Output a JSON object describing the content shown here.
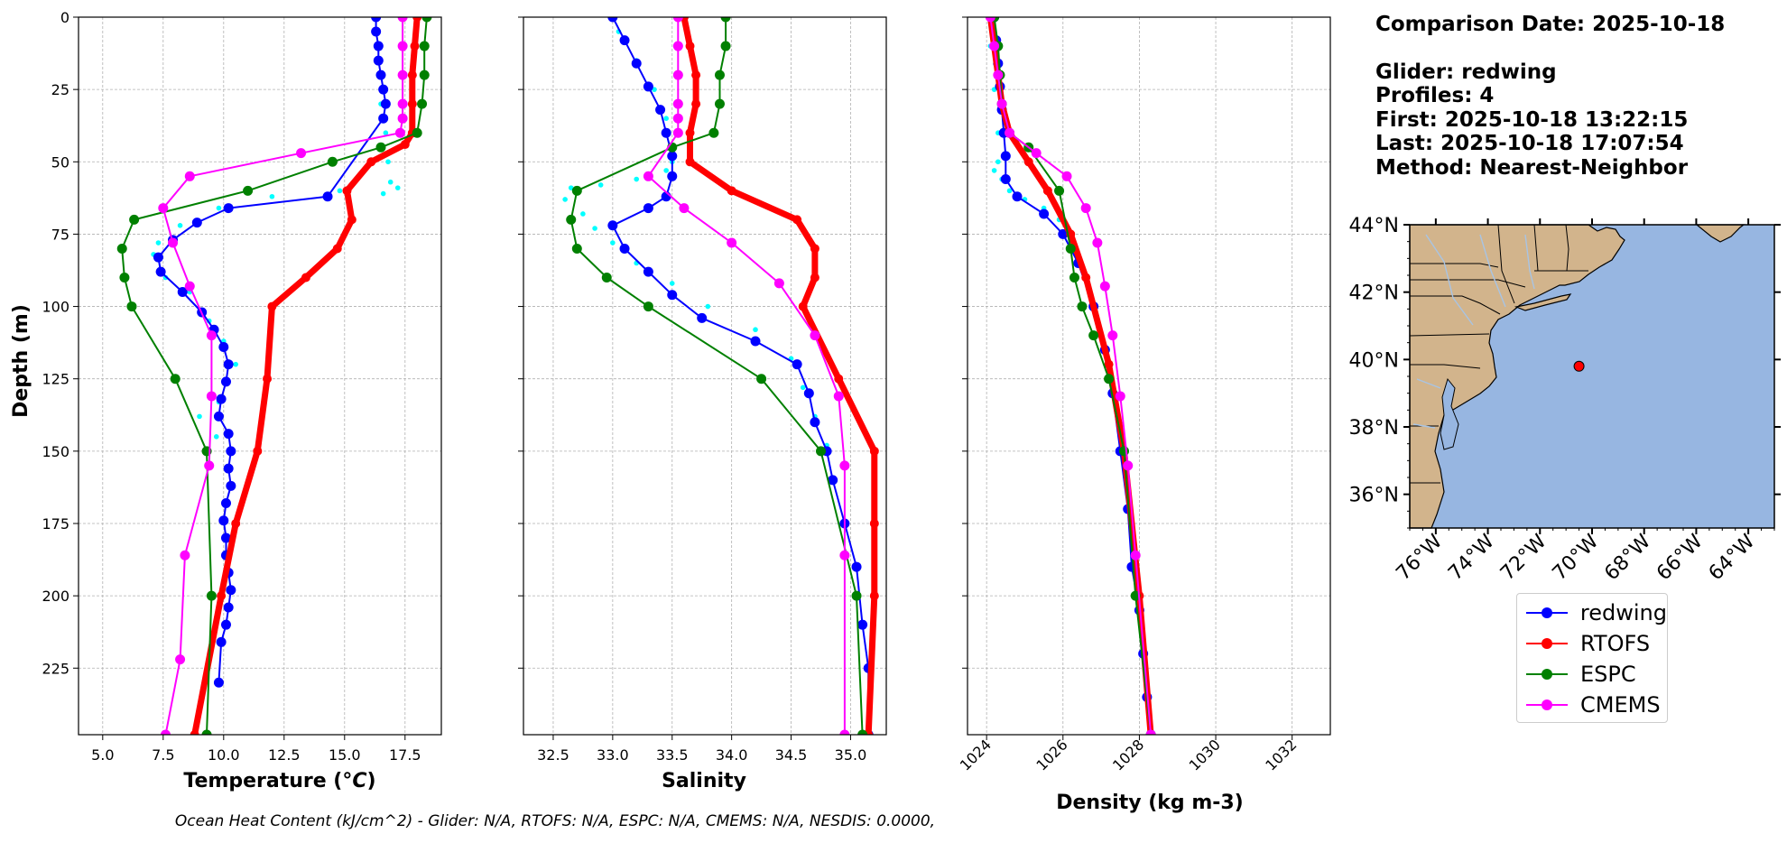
{
  "info": {
    "comparison_date": "Comparison Date: 2025-10-18",
    "glider": "Glider: redwing",
    "profiles": "Profiles: 4",
    "first": "First: 2025-10-18 13:22:15",
    "last": "Last: 2025-10-18 17:07:54",
    "method": "Method: Nearest-Neighbor"
  },
  "footer": "Ocean Heat Content (kJ/cm^2) - Glider: N/A,  RTOFS: N/A,  ESPC: N/A,  CMEMS: N/A,  NESDIS: 0.0000,",
  "legend": [
    {
      "label": "redwing",
      "color": "#0000ff"
    },
    {
      "label": "RTOFS",
      "color": "#ff0000"
    },
    {
      "label": "ESPC",
      "color": "#008000"
    },
    {
      "label": "CMEMS",
      "color": "#ff00ff"
    }
  ],
  "map": {
    "lat_ticks": [
      "44°N",
      "42°N",
      "40°N",
      "38°N",
      "36°N"
    ],
    "lon_ticks": [
      "76°W",
      "74°W",
      "72°W",
      "70°W",
      "68°W",
      "66°W",
      "64°W"
    ],
    "lat_range": [
      35,
      44
    ],
    "lon_range": [
      -77,
      -63
    ],
    "glider_position": [
      -70.5,
      39.8
    ],
    "ocean_color": "#97b6e1",
    "land_color": "#d2b48c",
    "marker_color": "#ff0000"
  },
  "chart_data": [
    {
      "type": "line",
      "panel": "temperature",
      "xlabel": "Temperature (°C)",
      "ylabel": "Depth (m)",
      "xlim": [
        4,
        19
      ],
      "ylim": [
        248,
        0
      ],
      "xticks": [
        5.0,
        7.5,
        10.0,
        12.5,
        15.0,
        17.5
      ],
      "xticklabels": [
        "5.0",
        "7.5",
        "10.0",
        "12.5",
        "15.0",
        "17.5"
      ],
      "yticks": [
        0,
        25,
        50,
        75,
        100,
        125,
        150,
        175,
        200,
        225
      ],
      "yticklabels": [
        "0",
        "25",
        "50",
        "75",
        "100",
        "125",
        "150",
        "175",
        "200",
        "225"
      ],
      "grid": true,
      "scatter": {
        "name": "redwing profiles",
        "color": "#00ffff",
        "x": [
          16.3,
          16.4,
          16.5,
          16.7,
          16.8,
          16.9,
          17.2,
          16.6,
          14.8,
          12.0,
          9.8,
          8.2,
          7.3,
          7.1,
          7.6,
          8.6,
          9.4,
          10.0,
          10.5,
          10.1,
          9.8,
          9.0,
          9.7,
          10.2
        ],
        "y": [
          10,
          20,
          30,
          40,
          50,
          57,
          59,
          61,
          60,
          62,
          66,
          72,
          78,
          82,
          90,
          95,
          105,
          112,
          120,
          126,
          133,
          138,
          145,
          150
        ]
      },
      "series": [
        {
          "name": "redwing",
          "color": "#0000ff",
          "x": [
            16.3,
            16.3,
            16.4,
            16.4,
            16.5,
            16.6,
            16.7,
            16.6,
            14.3,
            10.2,
            8.9,
            7.9,
            7.3,
            7.4,
            8.3,
            9.1,
            9.6,
            10.0,
            10.2,
            10.1,
            9.9,
            9.8,
            10.2,
            10.3,
            10.2,
            10.3,
            10.1,
            10.0,
            10.1,
            10.1,
            10.2,
            10.3,
            10.2,
            10.1,
            9.9,
            9.8
          ],
          "y": [
            0,
            5,
            10,
            15,
            20,
            25,
            30,
            35,
            62,
            66,
            71,
            77,
            83,
            88,
            95,
            102,
            108,
            114,
            120,
            126,
            132,
            138,
            144,
            150,
            156,
            162,
            168,
            174,
            180,
            186,
            192,
            198,
            204,
            210,
            216,
            230
          ]
        },
        {
          "name": "RTOFS",
          "color": "#ff0000",
          "x": [
            18.0,
            17.9,
            17.8,
            17.8,
            17.8,
            17.5,
            16.1,
            15.1,
            15.3,
            14.7,
            13.4,
            12.0,
            11.8,
            11.4,
            10.5,
            9.9,
            8.8
          ],
          "y": [
            0,
            10,
            20,
            30,
            40,
            44,
            50,
            60,
            70,
            80,
            90,
            100,
            125,
            150,
            175,
            200,
            248
          ]
        },
        {
          "name": "ESPC",
          "color": "#008000",
          "x": [
            18.4,
            18.3,
            18.3,
            18.2,
            18.0,
            16.5,
            14.5,
            11.0,
            6.3,
            5.8,
            5.9,
            6.2,
            8.0,
            9.3,
            9.5,
            9.3
          ],
          "y": [
            0,
            10,
            20,
            30,
            40,
            45,
            50,
            60,
            70,
            80,
            90,
            100,
            125,
            150,
            200,
            248
          ]
        },
        {
          "name": "CMEMS",
          "color": "#ff00ff",
          "x": [
            17.4,
            17.4,
            17.4,
            17.4,
            17.4,
            17.3,
            13.2,
            8.6,
            7.5,
            7.9,
            8.6,
            9.5,
            9.5,
            9.4,
            8.4,
            8.2,
            7.6
          ],
          "y": [
            0,
            10,
            20,
            30,
            35,
            40,
            47,
            55,
            66,
            78,
            93,
            110,
            131,
            155,
            186,
            222,
            248
          ]
        }
      ]
    },
    {
      "type": "line",
      "panel": "salinity",
      "xlabel": "Salinity",
      "ylabel": "",
      "xlim": [
        32.25,
        35.3
      ],
      "ylim": [
        248,
        0
      ],
      "xticks": [
        32.5,
        33.0,
        33.5,
        34.0,
        34.5,
        35.0
      ],
      "xticklabels": [
        "32.5",
        "33.0",
        "33.5",
        "34.0",
        "34.5",
        "35.0"
      ],
      "yticks": [
        0,
        25,
        50,
        75,
        100,
        125,
        150,
        175,
        200,
        225
      ],
      "grid": true,
      "scatter": {
        "name": "redwing profiles",
        "color": "#00ffff",
        "x": [
          33.05,
          33.2,
          33.35,
          33.45,
          33.5,
          33.5,
          33.45,
          33.2,
          32.9,
          32.65,
          32.6,
          32.75,
          32.85,
          33.0,
          33.2,
          33.5,
          33.8,
          34.2,
          34.5,
          34.6,
          34.7,
          34.8
        ],
        "y": [
          5,
          15,
          25,
          35,
          45,
          50,
          53,
          56,
          58,
          59,
          63,
          68,
          73,
          78,
          85,
          92,
          100,
          108,
          118,
          128,
          138,
          148
        ]
      },
      "series": [
        {
          "name": "redwing",
          "color": "#0000ff",
          "x": [
            33.0,
            33.1,
            33.2,
            33.3,
            33.4,
            33.45,
            33.5,
            33.5,
            33.45,
            33.3,
            33.0,
            33.1,
            33.3,
            33.5,
            33.75,
            34.2,
            34.55,
            34.65,
            34.7,
            34.8,
            34.85,
            34.95,
            35.05,
            35.1,
            35.15,
            35.15
          ],
          "y": [
            0,
            8,
            16,
            24,
            32,
            40,
            48,
            55,
            62,
            66,
            72,
            80,
            88,
            96,
            104,
            112,
            120,
            130,
            140,
            150,
            160,
            175,
            190,
            210,
            225,
            248
          ]
        },
        {
          "name": "RTOFS",
          "color": "#ff0000",
          "x": [
            33.6,
            33.65,
            33.7,
            33.7,
            33.65,
            33.65,
            34.0,
            34.55,
            34.7,
            34.7,
            34.6,
            34.9,
            35.2,
            35.2,
            35.2,
            35.15
          ],
          "y": [
            0,
            10,
            20,
            30,
            40,
            50,
            60,
            70,
            80,
            90,
            100,
            125,
            150,
            175,
            200,
            248
          ]
        },
        {
          "name": "ESPC",
          "color": "#008000",
          "x": [
            33.95,
            33.95,
            33.9,
            33.9,
            33.85,
            33.5,
            32.7,
            32.65,
            32.7,
            32.95,
            33.3,
            34.25,
            34.75,
            35.05,
            35.1
          ],
          "y": [
            0,
            10,
            20,
            30,
            40,
            45,
            60,
            70,
            80,
            90,
            100,
            125,
            150,
            200,
            248
          ]
        },
        {
          "name": "CMEMS",
          "color": "#ff00ff",
          "x": [
            33.55,
            33.55,
            33.55,
            33.55,
            33.55,
            33.55,
            33.3,
            33.6,
            34.0,
            34.4,
            34.7,
            34.9,
            34.95,
            34.95,
            34.95
          ],
          "y": [
            0,
            10,
            20,
            30,
            35,
            40,
            55,
            66,
            78,
            92,
            110,
            131,
            155,
            186,
            248
          ]
        }
      ]
    },
    {
      "type": "line",
      "panel": "density",
      "xlabel": "Density (kg m-3)",
      "ylabel": "",
      "xlim": [
        1023.5,
        1033
      ],
      "ylim": [
        248,
        0
      ],
      "xticks": [
        1024,
        1026,
        1028,
        1030,
        1032
      ],
      "xticklabels": [
        "1024",
        "1026",
        "1028",
        "1030",
        "1032"
      ],
      "yticks": [
        0,
        25,
        50,
        75,
        100,
        125,
        150,
        175,
        200,
        225
      ],
      "grid": true,
      "scatter": {
        "name": "redwing profiles",
        "color": "#00ffff",
        "x": [
          1024.1,
          1024.2,
          1024.3,
          1024.3,
          1024.2,
          1024.4,
          1024.6,
          1025.0,
          1025.5,
          1025.9
        ],
        "y": [
          10,
          25,
          40,
          50,
          53,
          56,
          60,
          63,
          66,
          70
        ]
      },
      "series": [
        {
          "name": "redwing",
          "color": "#0000ff",
          "x": [
            1024.2,
            1024.25,
            1024.3,
            1024.35,
            1024.4,
            1024.45,
            1024.5,
            1024.5,
            1024.8,
            1025.5,
            1026.0,
            1026.4,
            1026.8,
            1027.1,
            1027.3,
            1027.5,
            1027.7,
            1027.8,
            1028.0,
            1028.1,
            1028.2,
            1028.3
          ],
          "y": [
            0,
            8,
            16,
            24,
            32,
            40,
            48,
            56,
            62,
            68,
            75,
            85,
            100,
            115,
            130,
            150,
            170,
            190,
            205,
            220,
            235,
            248
          ]
        },
        {
          "name": "RTOFS",
          "color": "#ff0000",
          "x": [
            1024.1,
            1024.2,
            1024.3,
            1024.4,
            1024.6,
            1025.1,
            1025.6,
            1026.2,
            1026.6,
            1027.2,
            1027.6,
            1028.0,
            1028.3
          ],
          "y": [
            0,
            10,
            20,
            30,
            40,
            50,
            60,
            75,
            90,
            120,
            150,
            200,
            248
          ]
        },
        {
          "name": "ESPC",
          "color": "#008000",
          "x": [
            1024.2,
            1024.3,
            1024.35,
            1024.4,
            1024.6,
            1025.1,
            1025.9,
            1026.2,
            1026.3,
            1026.5,
            1026.8,
            1027.2,
            1027.6,
            1027.9,
            1028.3
          ],
          "y": [
            0,
            10,
            20,
            30,
            40,
            45,
            60,
            80,
            90,
            100,
            110,
            125,
            150,
            200,
            248
          ]
        },
        {
          "name": "CMEMS",
          "color": "#ff00ff",
          "x": [
            1024.1,
            1024.2,
            1024.3,
            1024.4,
            1024.6,
            1025.3,
            1026.1,
            1026.6,
            1026.9,
            1027.1,
            1027.3,
            1027.5,
            1027.7,
            1027.9,
            1028.3
          ],
          "y": [
            0,
            10,
            20,
            30,
            40,
            47,
            55,
            66,
            78,
            93,
            110,
            131,
            155,
            186,
            248
          ]
        }
      ]
    }
  ]
}
